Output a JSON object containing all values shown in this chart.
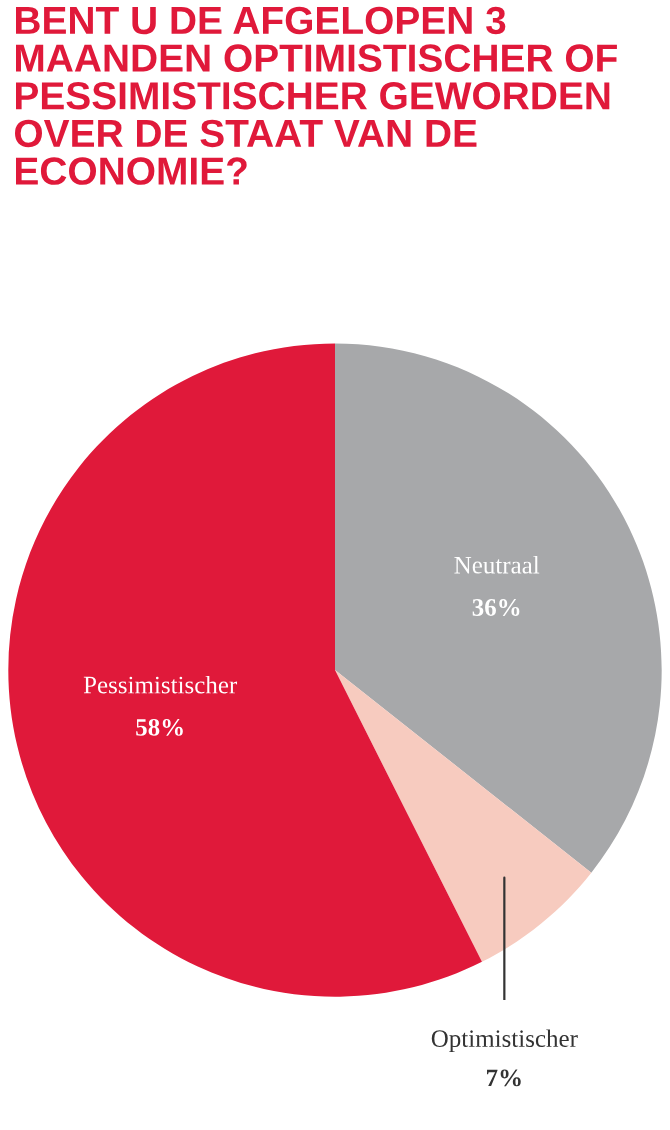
{
  "chart_data": {
    "type": "pie",
    "title": "BENT U DE AFGELOPEN 3 MAANDEN OPTIMISTISCHER OF PESSIMISTISCHER GEWORDEN OVER DE STAAT VAN DE ECONOMIE?",
    "categories": [
      "Neutraal",
      "Optimistischer",
      "Pessimistischer"
    ],
    "values": [
      36,
      7,
      58
    ],
    "value_labels": [
      "36%",
      "7%",
      "58%"
    ],
    "colors": [
      "#a7a8aa",
      "#f7cbbf",
      "#e0193a"
    ],
    "legend": false
  }
}
